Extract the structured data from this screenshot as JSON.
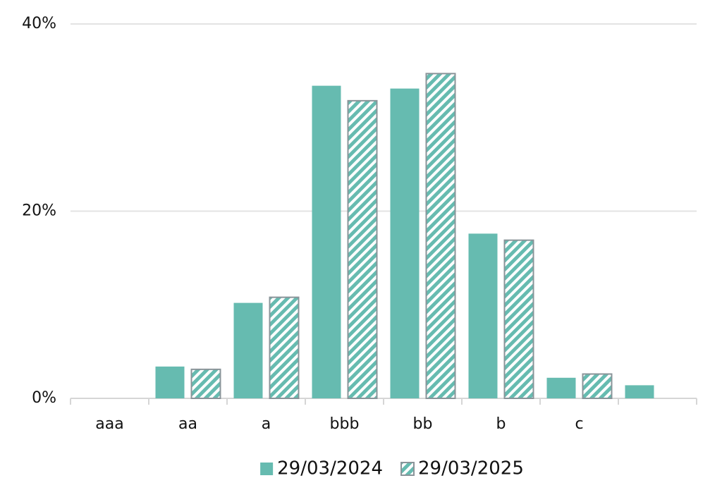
{
  "chart_data": {
    "type": "bar",
    "categories": [
      "aaa",
      "aa",
      "a",
      "bbb",
      "bb",
      "b",
      "c",
      null
    ],
    "series": [
      {
        "name": "29/03/2024",
        "color": "#66bbb0",
        "pattern": "solid",
        "values": [
          0,
          3.4,
          10.2,
          33.4,
          33.1,
          17.6,
          2.2,
          1.4
        ]
      },
      {
        "name": "29/03/2025",
        "color": "#66bbb0",
        "edge_color": "#8a9499",
        "pattern": "hatch",
        "values": [
          0,
          3.1,
          10.8,
          31.8,
          34.7,
          16.9,
          2.6,
          null
        ]
      }
    ],
    "ylim": [
      0,
      40
    ],
    "yticks": [
      {
        "value": 0,
        "label": "0%"
      },
      {
        "value": 20,
        "label": "20%"
      },
      {
        "value": 40,
        "label": "40%"
      }
    ],
    "grid": true,
    "legend": "bottom"
  }
}
